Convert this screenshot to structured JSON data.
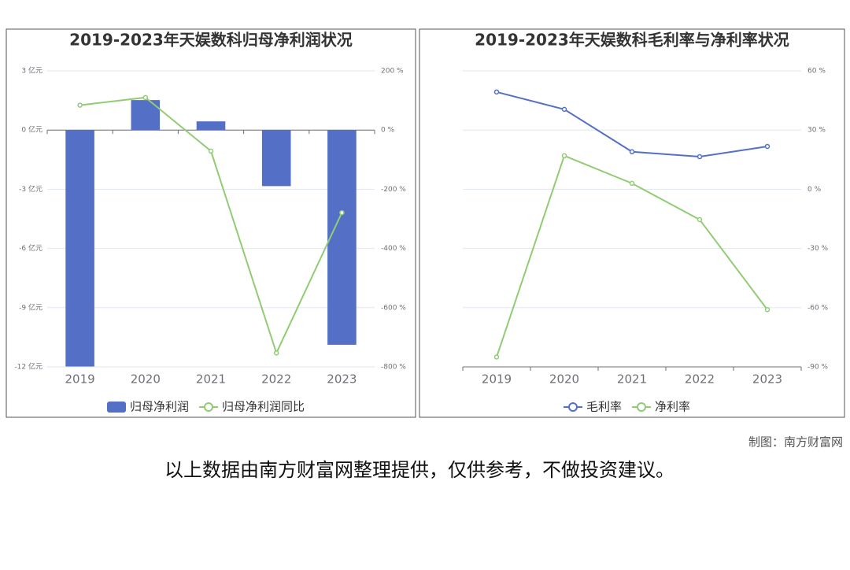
{
  "chart_data": [
    {
      "type": "bar",
      "title": "2019-2023年天娱数科归母净利润状况",
      "categories": [
        "2019",
        "2020",
        "2021",
        "2022",
        "2023"
      ],
      "series": [
        {
          "name": "归母净利润",
          "type": "bar",
          "color": "#5470c6",
          "values": [
            -11.98,
            1.52,
            0.44,
            -2.84,
            -10.88
          ]
        },
        {
          "name": "归母净利润同比",
          "type": "line",
          "axis": "y2",
          "color": "#91cc75",
          "values": [
            84,
            110,
            -71,
            -753,
            -279
          ]
        }
      ],
      "ylim": [
        -12,
        3
      ],
      "yticks": [
        {
          "value": -12,
          "label": "-12 亿元"
        },
        {
          "value": -9,
          "label": "-9 亿元"
        },
        {
          "value": -6,
          "label": "-6 亿元"
        },
        {
          "value": -3,
          "label": "-3 亿元"
        },
        {
          "value": 0,
          "label": "0 亿元"
        },
        {
          "value": 3,
          "label": "3 亿元"
        }
      ],
      "y2lim": [
        -800,
        200
      ],
      "y2ticks": [
        {
          "value": -800,
          "label": "-800 %"
        },
        {
          "value": -600,
          "label": "-600 %"
        },
        {
          "value": -400,
          "label": "-400 %"
        },
        {
          "value": -200,
          "label": "-200 %"
        },
        {
          "value": 0,
          "label": "0 %"
        },
        {
          "value": 200,
          "label": "200 %"
        }
      ],
      "grid": true,
      "legend": "bottom"
    },
    {
      "type": "line",
      "title": "2019-2023年天娱数科毛利率与净利率状况",
      "categories": [
        "2019",
        "2020",
        "2021",
        "2022",
        "2023"
      ],
      "series": [
        {
          "name": "毛利率",
          "type": "line",
          "color": "#5470c6",
          "values": [
            49.3,
            40.5,
            19,
            16.5,
            21.7
          ]
        },
        {
          "name": "净利率",
          "type": "line",
          "color": "#91cc75",
          "values": [
            -85,
            17,
            3,
            -15.4,
            -61
          ]
        }
      ],
      "y2lim": [
        -90,
        60
      ],
      "y2ticks": [
        {
          "value": -90,
          "label": "-90 %"
        },
        {
          "value": -60,
          "label": "-60 %"
        },
        {
          "value": -30,
          "label": "-30 %"
        },
        {
          "value": 0,
          "label": "0 %"
        },
        {
          "value": 30,
          "label": "30 %"
        },
        {
          "value": 60,
          "label": "60 %"
        }
      ],
      "grid": true,
      "legend": "bottom"
    }
  ],
  "credit": "制图：南方财富网",
  "disclaimer": "以上数据由南方财富网整理提供，仅供参考，不做投资建议。"
}
